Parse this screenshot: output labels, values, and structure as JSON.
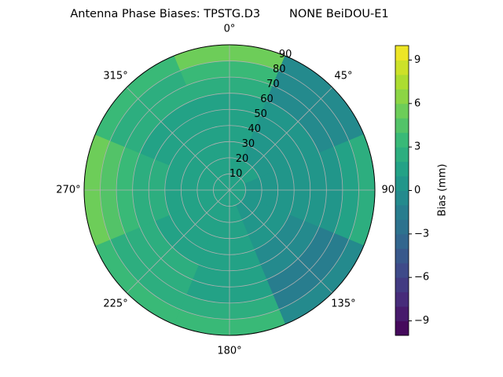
{
  "chart_data": {
    "type": "polar-contour",
    "title": "Antenna Phase Biases: TPSTG.D3        NONE BeiDOU-E1",
    "azimuths": [
      0,
      45,
      90,
      135,
      180,
      225,
      270,
      315
    ],
    "zenith_bins": [
      0,
      10,
      20,
      30,
      40,
      50,
      60,
      70,
      80,
      90
    ],
    "values": [
      [
        1,
        1,
        1,
        1,
        1,
        1,
        2,
        3,
        5
      ],
      [
        1,
        1,
        0,
        0,
        0,
        0,
        -1,
        -1,
        -1
      ],
      [
        1,
        0,
        0,
        0,
        0,
        0,
        0,
        1,
        2
      ],
      [
        1,
        0,
        0,
        0,
        -1,
        -1,
        -2,
        -2,
        -1
      ],
      [
        1,
        1,
        1,
        1,
        1,
        1,
        1,
        2,
        3
      ],
      [
        1,
        1,
        1,
        1,
        1,
        2,
        2,
        2,
        3
      ],
      [
        1,
        1,
        1,
        1,
        2,
        2,
        3,
        4,
        5
      ],
      [
        1,
        1,
        1,
        1,
        1,
        1,
        2,
        2,
        3
      ]
    ],
    "rlim": [
      0,
      90
    ],
    "rticks": [
      10,
      20,
      30,
      40,
      50,
      60,
      70,
      80,
      90
    ],
    "theta_ticks": [
      {
        "value": 0,
        "label": "0°"
      },
      {
        "value": 45,
        "label": "45°"
      },
      {
        "value": 90,
        "label": "90°"
      },
      {
        "value": 135,
        "label": "135°"
      },
      {
        "value": 180,
        "label": "180°"
      },
      {
        "value": 225,
        "label": "225°"
      },
      {
        "value": 270,
        "label": "270°"
      },
      {
        "value": 315,
        "label": "315°"
      }
    ],
    "levels": [
      -10,
      -9,
      -8,
      -7,
      -6,
      -5,
      -4,
      -3,
      -2,
      -1,
      0,
      1,
      2,
      3,
      4,
      5,
      6,
      7,
      8,
      9,
      10
    ],
    "clim": [
      -10,
      10
    ],
    "cticks": [
      {
        "value": -9,
        "label": "−9"
      },
      {
        "value": -6,
        "label": "−6"
      },
      {
        "value": -3,
        "label": "−3"
      },
      0,
      3,
      6,
      9
    ],
    "colorbar_label": "Bias (mm)",
    "colormap": "viridis",
    "grid": true
  }
}
